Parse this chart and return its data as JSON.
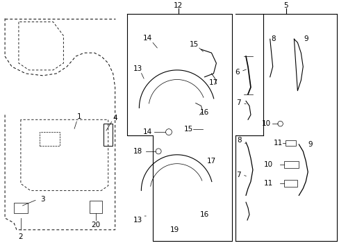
{
  "bg_color": "#ffffff",
  "line_color": "#000000",
  "fig_width": 4.89,
  "fig_height": 3.6,
  "dpi": 100,
  "font_size": 7.5
}
